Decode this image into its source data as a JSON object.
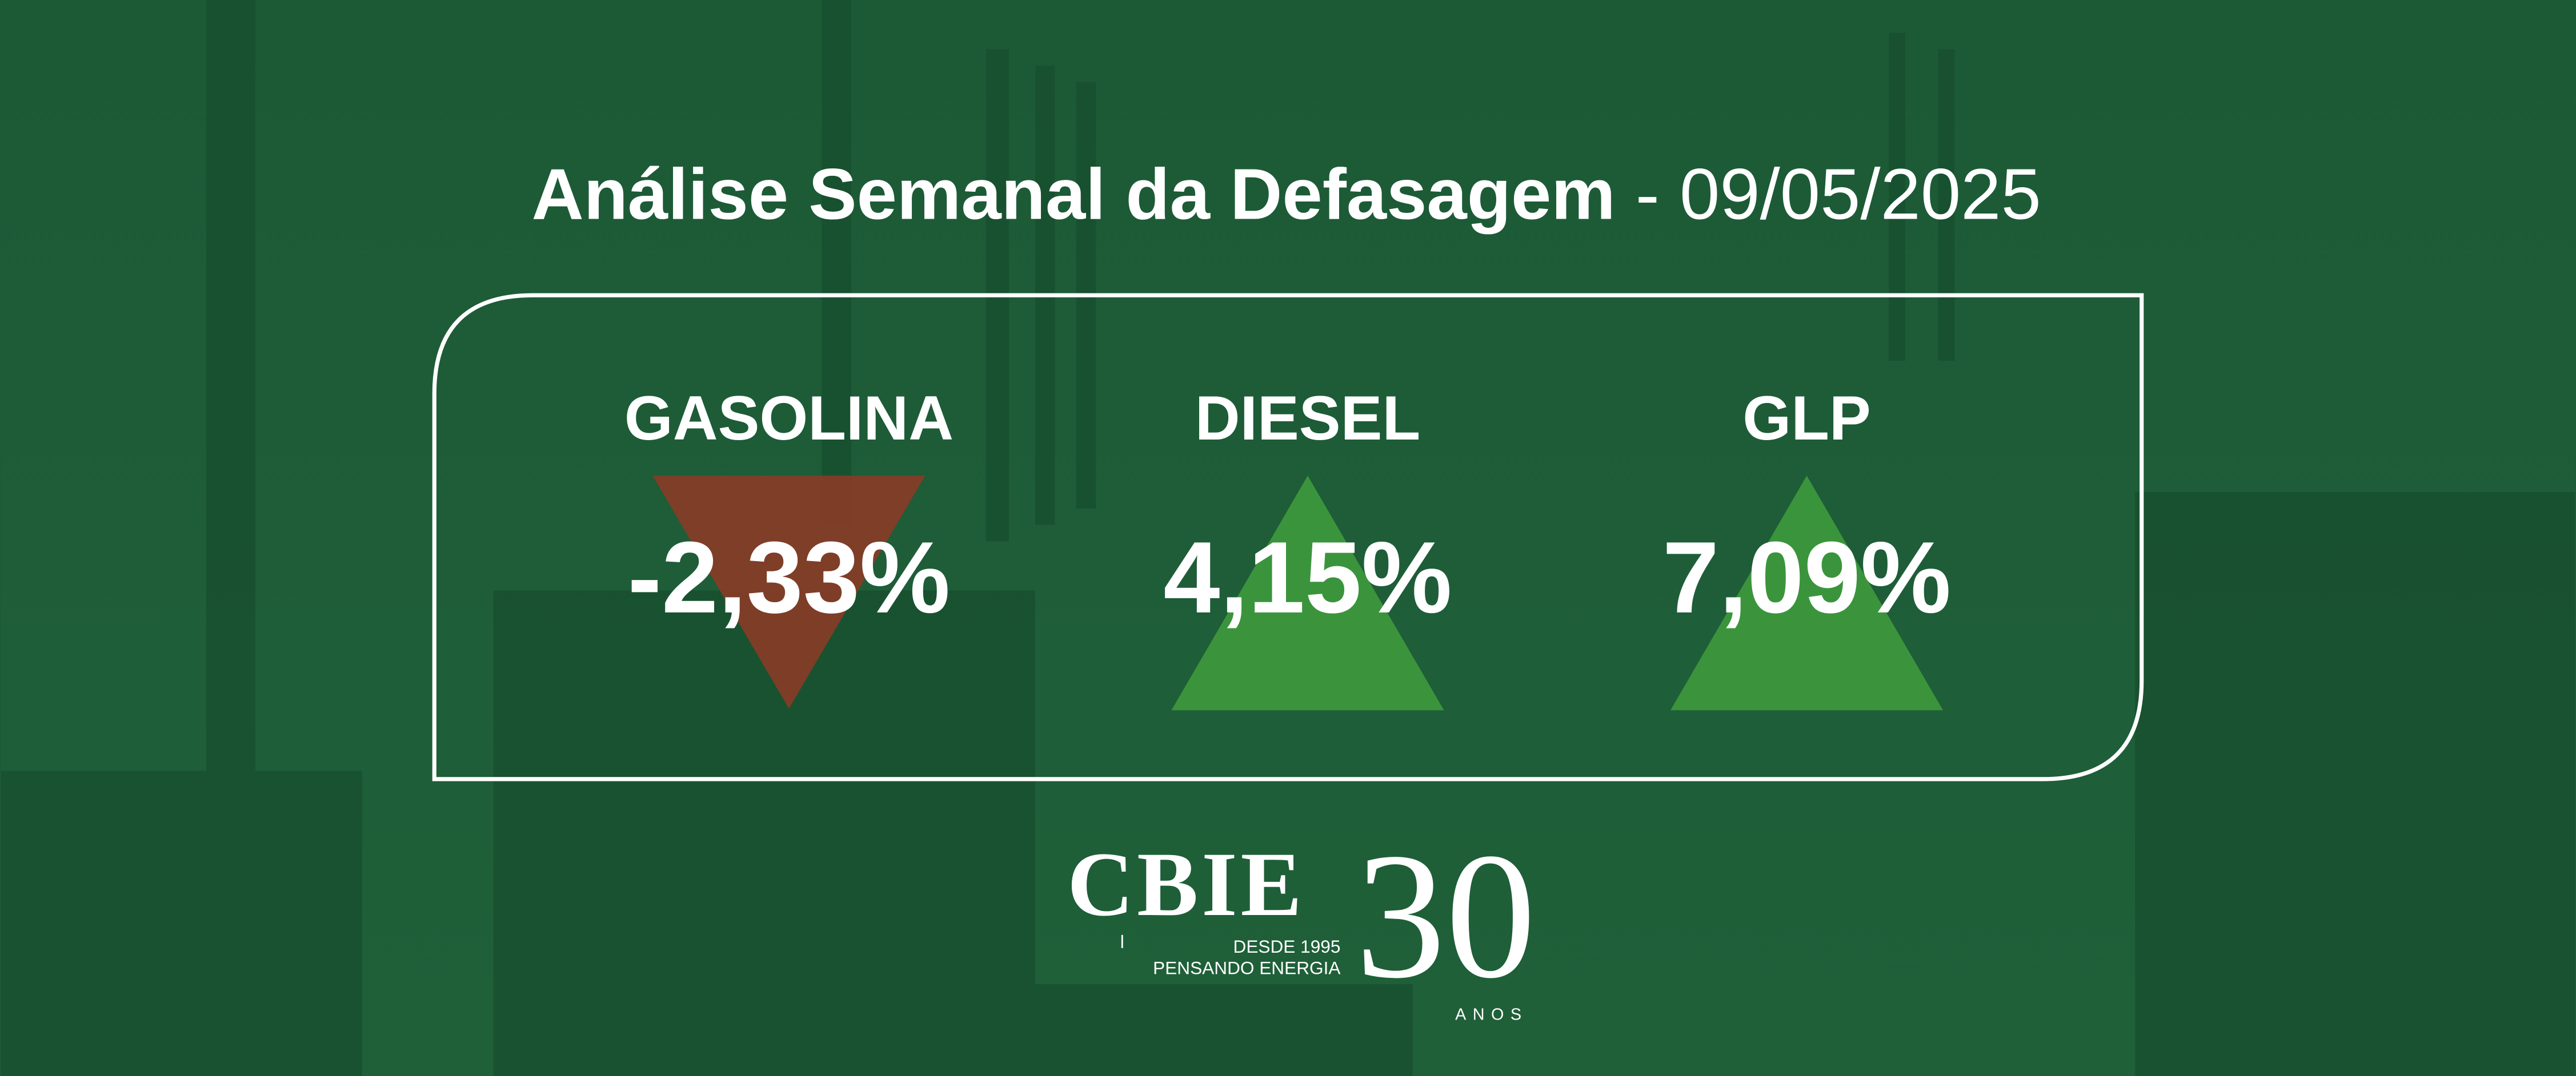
{
  "header": {
    "title": "Análise Semanal da Defasagem",
    "separator": "-",
    "date": "09/05/2025"
  },
  "items": [
    {
      "name": "GASOLINA",
      "value": "-2,33%"
    },
    {
      "name": "DIESEL",
      "value": "4,15%"
    },
    {
      "name": "GLP",
      "value": "7,09%"
    }
  ],
  "logo": {
    "brand": "CBIE",
    "since": "DESDE 1995",
    "tagline": "PENSANDO ENERGIA",
    "years": "30",
    "years_label": "ANOS"
  }
}
